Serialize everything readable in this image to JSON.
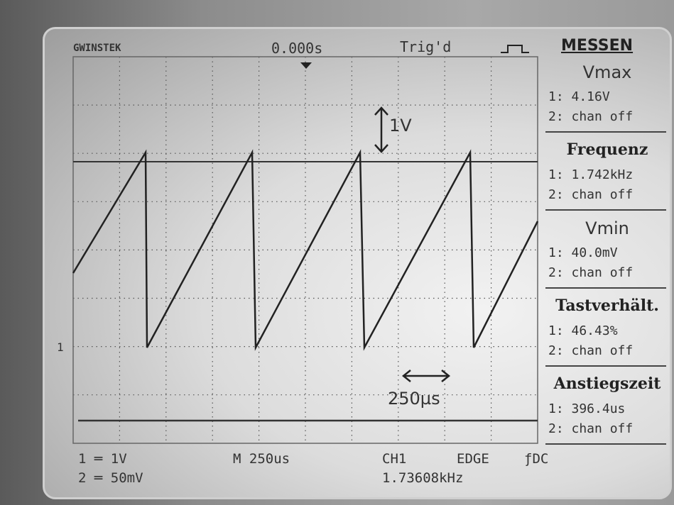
{
  "header": {
    "brand": "GWINSTEK",
    "trigger_position": "0.000s",
    "trigger_status": "Trig'd",
    "menu_title": "MESSEN"
  },
  "measurements": [
    {
      "label": "Vmax",
      "ch1": "1: 4.16V",
      "ch2": "2: chan off"
    },
    {
      "label": "Frequenz",
      "ch1": "1: 1.742kHz",
      "ch2": "2: chan off"
    },
    {
      "label": "Vmin",
      "ch1": "1: 40.0mV",
      "ch2": "2: chan off"
    },
    {
      "label": "Tastverhält.",
      "ch1": "1: 46.43%",
      "ch2": "2: chan off"
    },
    {
      "label": "Anstiegszeit",
      "ch1": "1: 396.4us",
      "ch2": "2: chan off"
    }
  ],
  "annotations": {
    "voltage": "1V",
    "time": "250µs"
  },
  "channel_marker": "1",
  "footer": {
    "ch1_scale": "1V",
    "ch2_scale": "50mV",
    "timebase": "250us",
    "trigger_source": "CH1",
    "trigger_type": "EDGE",
    "coupling": "DC",
    "trigger_frequency": "1.73608kHz"
  }
}
